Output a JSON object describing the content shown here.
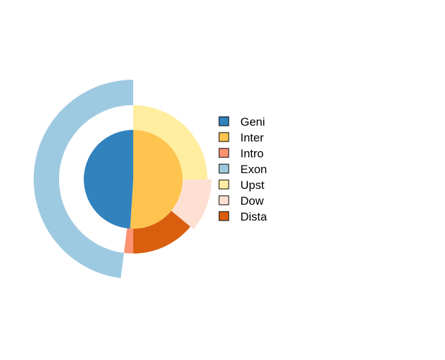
{
  "chart_data": {
    "type": "pie",
    "subtype": "nested-donut",
    "rings": [
      {
        "ring": "inner",
        "slices": [
          {
            "label": "Genic",
            "value": 49,
            "color": "#3182bd"
          },
          {
            "label": "Intergenic",
            "value": 51,
            "color": "#fec44f"
          }
        ]
      },
      {
        "ring": "outer",
        "slices": [
          {
            "label": "Upstream",
            "value": 25,
            "color": "#ffeda0"
          },
          {
            "label": "Downstream",
            "value": 11,
            "color": "#fee0d2"
          },
          {
            "label": "Distal",
            "value": 14,
            "color": "#d95f0e"
          },
          {
            "label": "Intron",
            "value": 2,
            "color": "#fc9272"
          },
          {
            "label": "Exon",
            "value": 48,
            "color": "#9ecae1"
          }
        ]
      }
    ],
    "legend": {
      "placement": "right",
      "items": [
        {
          "label": "Geni",
          "color": "#3182bd"
        },
        {
          "label": "Inter",
          "color": "#fec44f"
        },
        {
          "label": "Intro",
          "color": "#fc9272"
        },
        {
          "label": "Exon",
          "color": "#9ecae1"
        },
        {
          "label": "Upst",
          "color": "#ffeda0"
        },
        {
          "label": "Dow",
          "color": "#fee0d2"
        },
        {
          "label": "Dista",
          "color": "#d95f0e"
        }
      ]
    }
  }
}
